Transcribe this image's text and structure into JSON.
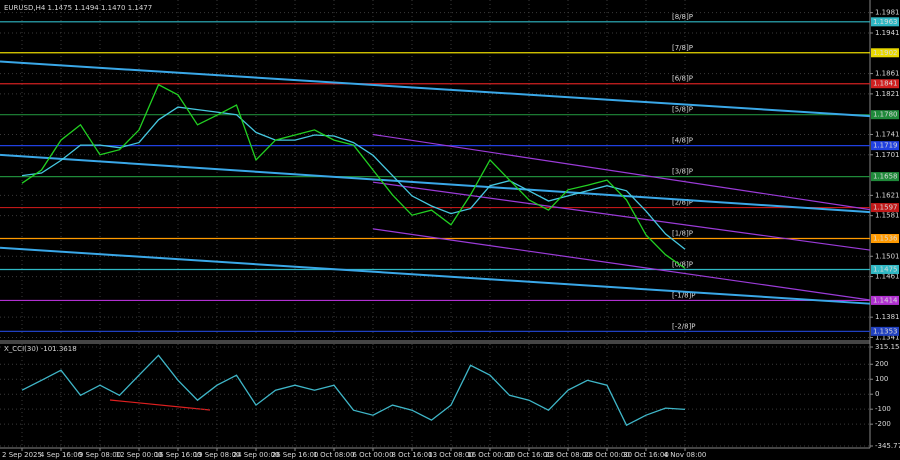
{
  "chart_data": [
    {
      "type": "line",
      "title": "EURUSD,H4  1.1475 1.1494 1.1470 1.1477",
      "categories": [
        "2 Sep 2025",
        null,
        "4 Sep 16:00",
        null,
        "9 Sep 08:00",
        null,
        "12 Sep 00:00",
        null,
        "16 Sep 16:00",
        null,
        "19 Sep 08:00",
        null,
        "24 Sep 00:00",
        null,
        "26 Sep 16:00",
        null,
        "1 Oct 08:00",
        null,
        "6 Oct 00:00",
        null,
        "8 Oct 16:00",
        null,
        "13 Oct 08:00",
        null,
        "16 Oct 00:00",
        null,
        "20 Oct 16:00",
        null,
        "23 Oct 08:00",
        null,
        "28 Oct 00:00",
        null,
        "30 Oct 16:00",
        null,
        "4 Nov 08:00"
      ],
      "values": [
        1.1645,
        1.1671,
        1.173,
        1.176,
        1.1701,
        1.1711,
        1.175,
        1.1839,
        1.1819,
        1.176,
        1.1779,
        1.1799,
        1.1691,
        1.173,
        1.174,
        1.175,
        1.173,
        1.172,
        1.1671,
        1.1622,
        1.1582,
        1.1592,
        1.1563,
        1.1622,
        1.1691,
        1.1651,
        1.1612,
        1.1592,
        1.1632,
        1.1641,
        1.1651,
        1.1612,
        1.1543,
        1.1504,
        1.1477
      ],
      "color": "#22d022",
      "ma_values": [
        1.166,
        1.1665,
        1.169,
        1.172,
        1.172,
        1.1715,
        1.1725,
        1.177,
        1.1795,
        1.179,
        1.1785,
        1.178,
        1.1745,
        1.173,
        1.173,
        1.174,
        1.1738,
        1.1725,
        1.17,
        1.166,
        1.162,
        1.16,
        1.1585,
        1.1595,
        1.164,
        1.165,
        1.163,
        1.161,
        1.162,
        1.163,
        1.164,
        1.163,
        1.159,
        1.1545,
        1.1515
      ],
      "ma_color": "#46c8e0",
      "channels": [
        {
          "color": "#3aa8e8",
          "values": [
            1.1882,
            null,
            null,
            null,
            null,
            null,
            null,
            null,
            null,
            null,
            null,
            null,
            null,
            null,
            null,
            null,
            null,
            null,
            null,
            null,
            null,
            null,
            null,
            null,
            null,
            null,
            null,
            null,
            null,
            null,
            null,
            null,
            null,
            null,
            1.18
          ]
        },
        {
          "color": "#3aa8e8",
          "values": [
            1.1698,
            null,
            null,
            null,
            null,
            null,
            null,
            null,
            null,
            null,
            null,
            null,
            null,
            null,
            null,
            null,
            null,
            null,
            null,
            null,
            null,
            null,
            null,
            null,
            null,
            null,
            null,
            null,
            null,
            null,
            null,
            null,
            null,
            null,
            1.1612
          ]
        },
        {
          "color": "#3aa8e8",
          "values": [
            1.1515,
            null,
            null,
            null,
            null,
            null,
            null,
            null,
            null,
            null,
            null,
            null,
            null,
            null,
            null,
            null,
            null,
            null,
            null,
            null,
            null,
            null,
            null,
            null,
            null,
            null,
            null,
            null,
            null,
            null,
            null,
            null,
            null,
            null,
            1.1431
          ]
        },
        {
          "color": "#9b3bd8",
          "values": [
            null,
            null,
            null,
            null,
            null,
            null,
            null,
            null,
            null,
            null,
            null,
            null,
            null,
            null,
            null,
            null,
            null,
            null,
            1.1741,
            null,
            null,
            null,
            null,
            null,
            null,
            null,
            null,
            null,
            null,
            null,
            null,
            null,
            null,
            null,
            1.1648
          ]
        },
        {
          "color": "#9b3bd8",
          "values": [
            null,
            null,
            null,
            null,
            null,
            null,
            null,
            null,
            null,
            null,
            null,
            null,
            null,
            null,
            null,
            null,
            null,
            null,
            1.1647,
            null,
            null,
            null,
            null,
            null,
            null,
            null,
            null,
            null,
            null,
            null,
            null,
            null,
            null,
            null,
            1.1563
          ]
        },
        {
          "color": "#9b3bd8",
          "values": [
            null,
            null,
            null,
            null,
            null,
            null,
            null,
            null,
            null,
            null,
            null,
            null,
            null,
            null,
            null,
            null,
            null,
            null,
            1.1555,
            null,
            null,
            null,
            null,
            null,
            null,
            null,
            null,
            null,
            null,
            null,
            null,
            null,
            null,
            null,
            1.1467
          ]
        }
      ],
      "levels": [
        {
          "label": "[8/8]P",
          "value": 1.1963,
          "value_label": "1.1963",
          "color": "#2fb8c4"
        },
        {
          "label": "[7/8]P",
          "value": 1.1902,
          "value_label": "1.1902",
          "color": "#e8d800"
        },
        {
          "label": "[6/8]P",
          "value": 1.1841,
          "value_label": "1.1841",
          "color": "#d02020"
        },
        {
          "label": "[5/8]P",
          "value": 1.178,
          "value_label": "1.1780",
          "color": "#1f8a3a"
        },
        {
          "label": "[4/8]P",
          "value": 1.1719,
          "value_label": "1.1719",
          "color": "#2040e0"
        },
        {
          "label": "[3/8]P",
          "value": 1.1658,
          "value_label": "1.1658",
          "color": "#1f8a3a"
        },
        {
          "label": "[2/8]P",
          "value": 1.1597,
          "value_label": "1.1597",
          "color": "#c01818"
        },
        {
          "label": "[1/8]P",
          "value": 1.1536,
          "value_label": "1.1536",
          "color": "#ff9a00"
        },
        {
          "label": "[0/8]P",
          "value": 1.1475,
          "value_label": "1.1475",
          "color": "#2fb8c4"
        },
        {
          "label": "[-1/8]P",
          "value": 1.1414,
          "value_label": "1.1414",
          "color": "#b030d0"
        },
        {
          "label": "[-2/8]P",
          "value": 1.1353,
          "value_label": "1.1353",
          "color": "#2040c0"
        }
      ],
      "ylim": [
        1.1336,
        1.2006
      ],
      "yticks": [
        1.1981,
        1.1941,
        1.1861,
        1.1821,
        1.1741,
        1.1701,
        1.1621,
        1.1581,
        1.1501,
        1.1461,
        1.1381,
        1.1341
      ],
      "grid": true
    },
    {
      "type": "line",
      "title": "X_CCI(30) -101.3618",
      "values": [
        27,
        93,
        160,
        -7,
        60,
        -7,
        127,
        260,
        93,
        -40,
        60,
        127,
        -73,
        27,
        60,
        27,
        60,
        -107,
        -140,
        -73,
        -107,
        -173,
        -73,
        193,
        127,
        -7,
        -40,
        -107,
        27,
        93,
        60,
        -207,
        -140,
        -93,
        -101.3618
      ],
      "color": "#3fb6c8",
      "ylim": [
        -345.7735,
        315.1542
      ],
      "yticks": [
        315.1542,
        200,
        100,
        0,
        -100,
        -200,
        -345.7735
      ],
      "grid": true
    }
  ]
}
